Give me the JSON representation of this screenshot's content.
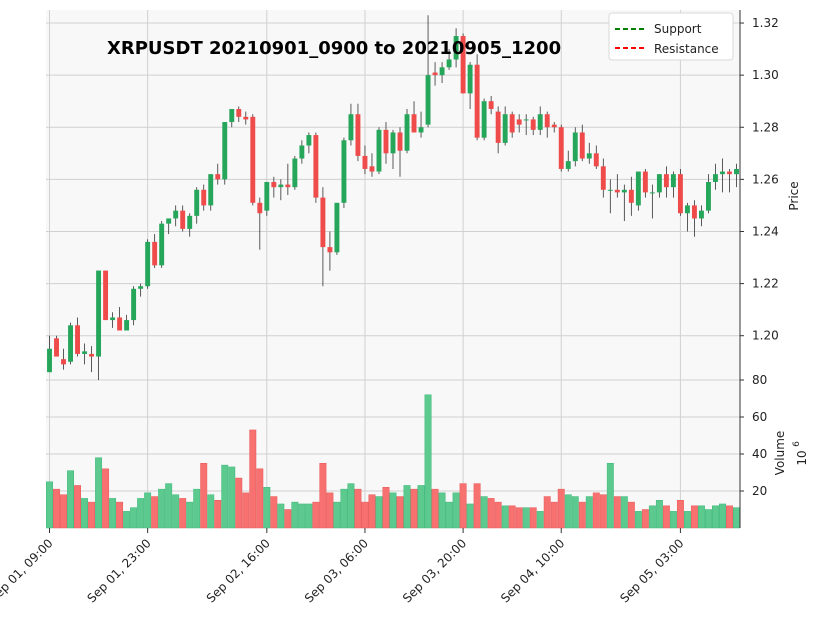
{
  "chart_data": {
    "type": "candlestick",
    "title": "XRPUSDT 20210901_0900 to 20210905_1200",
    "price_axis": {
      "label": "Price",
      "ylim": [
        1.183,
        1.325
      ],
      "ticks": [
        "1.20",
        "1.22",
        "1.24",
        "1.26",
        "1.28",
        "1.30",
        "1.32"
      ]
    },
    "volume_axis": {
      "label": "Volume",
      "exponent_label": "10",
      "exponent": "6",
      "ylim": [
        0,
        80
      ],
      "ticks": [
        "20",
        "40",
        "60",
        "80"
      ]
    },
    "x_axis": {
      "start": "2021-09-01 09:00",
      "interval_hours": 1,
      "ticks": [
        {
          "index": 0,
          "label": "Sep 01, 09:00"
        },
        {
          "index": 14,
          "label": "Sep 01, 23:00"
        },
        {
          "index": 31,
          "label": "Sep 02, 16:00"
        },
        {
          "index": 45,
          "label": "Sep 03, 06:00"
        },
        {
          "index": 59,
          "label": "Sep 03, 20:00"
        },
        {
          "index": 73,
          "label": "Sep 04, 10:00"
        },
        {
          "index": 90,
          "label": "Sep 05, 03:00"
        }
      ]
    },
    "legend": {
      "placement": "top-right",
      "entries": [
        {
          "label": "Support",
          "color": "#008000",
          "style": "dashed"
        },
        {
          "label": "Resistance",
          "color": "#ff0000",
          "style": "dashed"
        }
      ]
    },
    "colors": {
      "up": "#26a65b",
      "down": "#ef4b4b",
      "up_volume": "#5cc98f",
      "down_volume": "#f77171",
      "panel_bg": "#f8f8f8",
      "grid": "#d0d0d0"
    },
    "candles": [
      [
        1.186,
        1.2,
        1.186,
        1.195,
        25
      ],
      [
        1.199,
        1.2,
        1.193,
        1.192,
        21
      ],
      [
        1.191,
        1.195,
        1.187,
        1.189,
        18
      ],
      [
        1.19,
        1.205,
        1.189,
        1.204,
        31
      ],
      [
        1.204,
        1.207,
        1.192,
        1.193,
        23
      ],
      [
        1.193,
        1.197,
        1.189,
        1.194,
        16
      ],
      [
        1.193,
        1.196,
        1.186,
        1.192,
        14
      ],
      [
        1.192,
        1.225,
        1.183,
        1.225,
        38
      ],
      [
        1.225,
        1.225,
        1.206,
        1.206,
        32
      ],
      [
        1.206,
        1.209,
        1.203,
        1.207,
        16
      ],
      [
        1.207,
        1.211,
        1.202,
        1.202,
        14
      ],
      [
        1.202,
        1.208,
        1.203,
        1.206,
        9
      ],
      [
        1.206,
        1.219,
        1.204,
        1.218,
        11
      ],
      [
        1.218,
        1.22,
        1.215,
        1.219,
        16
      ],
      [
        1.219,
        1.237,
        1.218,
        1.236,
        19
      ],
      [
        1.236,
        1.239,
        1.226,
        1.227,
        17
      ],
      [
        1.227,
        1.244,
        1.226,
        1.243,
        21
      ],
      [
        1.243,
        1.244,
        1.239,
        1.245,
        24
      ],
      [
        1.245,
        1.25,
        1.242,
        1.248,
        18
      ],
      [
        1.248,
        1.25,
        1.24,
        1.241,
        16
      ],
      [
        1.241,
        1.247,
        1.238,
        1.246,
        14
      ],
      [
        1.246,
        1.257,
        1.243,
        1.256,
        21
      ],
      [
        1.256,
        1.258,
        1.248,
        1.25,
        35
      ],
      [
        1.25,
        1.262,
        1.248,
        1.262,
        18
      ],
      [
        1.262,
        1.266,
        1.258,
        1.26,
        15
      ],
      [
        1.26,
        1.282,
        1.258,
        1.282,
        34
      ],
      [
        1.282,
        1.287,
        1.28,
        1.287,
        33
      ],
      [
        1.287,
        1.288,
        1.282,
        1.284,
        27
      ],
      [
        1.284,
        1.286,
        1.281,
        1.283,
        19
      ],
      [
        1.284,
        1.285,
        1.25,
        1.251,
        53
      ],
      [
        1.251,
        1.253,
        1.233,
        1.247,
        32
      ],
      [
        1.248,
        1.258,
        1.246,
        1.259,
        22
      ],
      [
        1.259,
        1.261,
        1.253,
        1.257,
        17
      ],
      [
        1.257,
        1.26,
        1.252,
        1.258,
        13
      ],
      [
        1.258,
        1.266,
        1.254,
        1.257,
        10
      ],
      [
        1.257,
        1.269,
        1.256,
        1.268,
        14
      ],
      [
        1.268,
        1.275,
        1.266,
        1.273,
        13
      ],
      [
        1.273,
        1.278,
        1.27,
        1.277,
        13
      ],
      [
        1.277,
        1.278,
        1.251,
        1.253,
        14
      ],
      [
        1.253,
        1.257,
        1.219,
        1.234,
        35
      ],
      [
        1.234,
        1.24,
        1.225,
        1.232,
        19
      ],
      [
        1.232,
        1.251,
        1.231,
        1.251,
        14
      ],
      [
        1.251,
        1.276,
        1.249,
        1.275,
        21
      ],
      [
        1.275,
        1.289,
        1.273,
        1.285,
        24
      ],
      [
        1.285,
        1.289,
        1.267,
        1.269,
        21
      ],
      [
        1.269,
        1.273,
        1.262,
        1.264,
        14
      ],
      [
        1.265,
        1.27,
        1.261,
        1.263,
        18
      ],
      [
        1.263,
        1.28,
        1.262,
        1.279,
        17
      ],
      [
        1.279,
        1.282,
        1.266,
        1.27,
        22
      ],
      [
        1.27,
        1.279,
        1.264,
        1.278,
        19
      ],
      [
        1.278,
        1.28,
        1.261,
        1.271,
        17
      ],
      [
        1.271,
        1.287,
        1.27,
        1.285,
        23
      ],
      [
        1.285,
        1.29,
        1.278,
        1.278,
        21
      ],
      [
        1.278,
        1.286,
        1.276,
        1.28,
        23
      ],
      [
        1.281,
        1.323,
        1.28,
        1.3,
        72
      ],
      [
        1.301,
        1.305,
        1.296,
        1.3,
        21
      ],
      [
        1.3,
        1.305,
        1.297,
        1.303,
        19
      ],
      [
        1.303,
        1.31,
        1.302,
        1.306,
        14
      ],
      [
        1.306,
        1.318,
        1.303,
        1.315,
        19
      ],
      [
        1.315,
        1.316,
        1.293,
        1.293,
        24
      ],
      [
        1.293,
        1.305,
        1.287,
        1.304,
        13
      ],
      [
        1.304,
        1.308,
        1.275,
        1.276,
        24
      ],
      [
        1.276,
        1.291,
        1.275,
        1.29,
        17
      ],
      [
        1.29,
        1.292,
        1.285,
        1.287,
        16
      ],
      [
        1.286,
        1.288,
        1.27,
        1.274,
        14
      ],
      [
        1.274,
        1.288,
        1.273,
        1.285,
        12
      ],
      [
        1.285,
        1.286,
        1.276,
        1.278,
        12
      ],
      [
        1.283,
        1.285,
        1.278,
        1.281,
        11
      ],
      [
        1.283,
        1.285,
        1.277,
        1.283,
        11
      ],
      [
        1.283,
        1.284,
        1.277,
        1.279,
        11
      ],
      [
        1.279,
        1.288,
        1.277,
        1.285,
        9
      ],
      [
        1.285,
        1.286,
        1.276,
        1.28,
        17
      ],
      [
        1.281,
        1.282,
        1.278,
        1.28,
        14
      ],
      [
        1.28,
        1.281,
        1.263,
        1.264,
        21
      ],
      [
        1.264,
        1.271,
        1.263,
        1.267,
        18
      ],
      [
        1.267,
        1.28,
        1.265,
        1.278,
        17
      ],
      [
        1.278,
        1.281,
        1.267,
        1.268,
        14
      ],
      [
        1.268,
        1.274,
        1.266,
        1.27,
        17
      ],
      [
        1.27,
        1.273,
        1.264,
        1.265,
        19
      ],
      [
        1.265,
        1.268,
        1.253,
        1.256,
        18
      ],
      [
        1.256,
        1.26,
        1.247,
        1.256,
        35
      ],
      [
        1.256,
        1.262,
        1.253,
        1.255,
        17
      ],
      [
        1.255,
        1.258,
        1.244,
        1.256,
        17
      ],
      [
        1.256,
        1.261,
        1.246,
        1.251,
        14
      ],
      [
        1.25,
        1.263,
        1.248,
        1.263,
        9
      ],
      [
        1.263,
        1.264,
        1.253,
        1.255,
        10
      ],
      [
        1.255,
        1.258,
        1.245,
        1.255,
        12
      ],
      [
        1.255,
        1.262,
        1.253,
        1.262,
        15
      ],
      [
        1.262,
        1.265,
        1.253,
        1.257,
        12
      ],
      [
        1.257,
        1.263,
        1.253,
        1.262,
        9
      ],
      [
        1.262,
        1.264,
        1.246,
        1.247,
        15
      ],
      [
        1.247,
        1.251,
        1.24,
        1.25,
        9
      ],
      [
        1.25,
        1.252,
        1.238,
        1.245,
        12
      ],
      [
        1.245,
        1.25,
        1.242,
        1.248,
        12
      ],
      [
        1.248,
        1.262,
        1.247,
        1.259,
        10
      ],
      [
        1.259,
        1.266,
        1.256,
        1.262,
        12
      ],
      [
        1.262,
        1.268,
        1.255,
        1.263,
        13
      ],
      [
        1.263,
        1.264,
        1.255,
        1.262,
        12
      ],
      [
        1.262,
        1.266,
        1.257,
        1.264,
        11
      ]
    ]
  }
}
